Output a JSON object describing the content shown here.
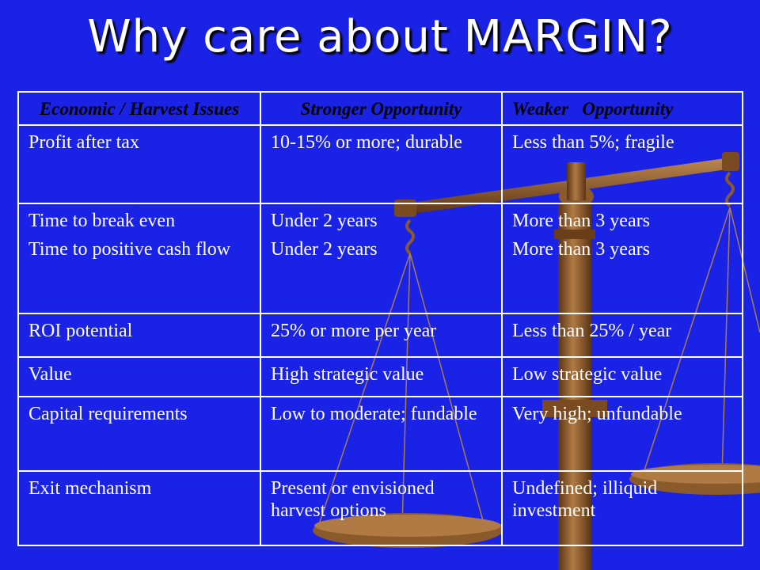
{
  "title": "Why care about MARGIN?",
  "table": {
    "headers": [
      "Economic / Harvest Issues",
      "Stronger Opportunity",
      "Weaker   Opportunity"
    ],
    "rows": [
      {
        "issue": [
          "Profit after tax"
        ],
        "stronger": [
          "10-15% or more; durable"
        ],
        "weaker": [
          "Less than 5%; fragile"
        ]
      },
      {
        "issue": [
          "Time to break even",
          "Time to positive cash flow"
        ],
        "stronger": [
          "Under 2 years",
          "Under 2 years"
        ],
        "weaker": [
          "More than 3 years",
          "More than 3 years"
        ]
      },
      {
        "issue": [
          "ROI potential"
        ],
        "stronger": [
          "25% or more per year"
        ],
        "weaker": [
          "Less than 25% / year"
        ]
      },
      {
        "issue": [
          "Value"
        ],
        "stronger": [
          "High strategic value"
        ],
        "weaker": [
          "Low strategic value"
        ]
      },
      {
        "issue": [
          "Capital requirements"
        ],
        "stronger": [
          "Low to moderate; fundable"
        ],
        "weaker": [
          "Very high; unfundable"
        ]
      },
      {
        "issue": [
          "Exit mechanism"
        ],
        "stronger": [
          "Present or envisioned harvest options"
        ],
        "weaker": [
          "Undefined; illiquid investment"
        ]
      }
    ]
  },
  "colors": {
    "background": "#1a22e6",
    "text": "#ffffff",
    "header_text": "#000000",
    "scale_wood": "#8a5a2b",
    "scale_dark": "#5a3414"
  },
  "decor": {
    "background_image": "balance-scale-icon"
  }
}
